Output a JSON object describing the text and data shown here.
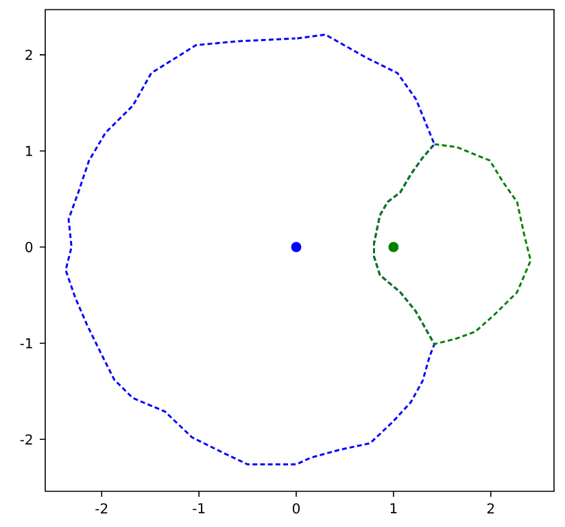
{
  "chart_data": {
    "type": "line",
    "line_style": "dashed",
    "grid": false,
    "xlim": [
      -2.58,
      2.65
    ],
    "ylim": [
      -2.54,
      2.47
    ],
    "xticks": [
      -2,
      -1,
      0,
      1,
      2
    ],
    "yticks": [
      -2,
      -1,
      0,
      1,
      2
    ],
    "series": [
      {
        "color": "#0000ff",
        "x": [
          0.01,
          0.3,
          0.72,
          1.04,
          1.23,
          1.42,
          1.3,
          1.18,
          1.07,
          0.94,
          0.86,
          0.8,
          0.8,
          0.86,
          1.07,
          1.23,
          1.42,
          1.37,
          1.3,
          1.18,
          1.0,
          0.76,
          0.44,
          0.15,
          0.0,
          -0.5,
          -0.75,
          -1.07,
          -1.35,
          -1.68,
          -1.87,
          -2.01,
          -2.15,
          -2.27,
          -2.37,
          -2.31,
          -2.34,
          -2.24,
          -2.13,
          -1.96,
          -1.68,
          -1.49,
          -1.03,
          -0.61,
          -0.01
        ],
        "values": [
          2.17,
          2.21,
          1.97,
          1.81,
          1.54,
          1.07,
          0.93,
          0.76,
          0.57,
          0.47,
          0.33,
          0.04,
          -0.1,
          -0.29,
          -0.47,
          -0.67,
          -1.01,
          -1.14,
          -1.39,
          -1.61,
          -1.81,
          -2.04,
          -2.11,
          -2.19,
          -2.26,
          -2.26,
          -2.14,
          -1.98,
          -1.71,
          -1.57,
          -1.38,
          -1.1,
          -0.81,
          -0.53,
          -0.24,
          0.0,
          0.29,
          0.57,
          0.9,
          1.19,
          1.47,
          1.81,
          2.1,
          2.14,
          2.17
        ]
      },
      {
        "color": "#008000",
        "x": [
          1.42,
          1.65,
          1.99,
          2.13,
          2.27,
          2.35,
          2.41,
          2.27,
          2.03,
          1.84,
          1.65,
          1.42,
          1.23,
          1.07,
          0.86,
          0.8,
          0.8,
          0.86,
          0.94,
          1.07,
          1.18,
          1.3,
          1.4
        ],
        "values": [
          1.07,
          1.04,
          0.9,
          0.67,
          0.47,
          0.1,
          -0.14,
          -0.47,
          -0.71,
          -0.88,
          -0.95,
          -1.01,
          -0.67,
          -0.47,
          -0.29,
          -0.1,
          0.04,
          0.33,
          0.47,
          0.57,
          0.76,
          0.93,
          1.05
        ]
      },
      {
        "type": "scatter",
        "marker": "circle",
        "color": "#0000ff",
        "x": [
          0
        ],
        "values": [
          0
        ]
      },
      {
        "type": "scatter",
        "marker": "circle",
        "color": "#008000",
        "x": [
          1
        ],
        "values": [
          0
        ]
      }
    ]
  }
}
